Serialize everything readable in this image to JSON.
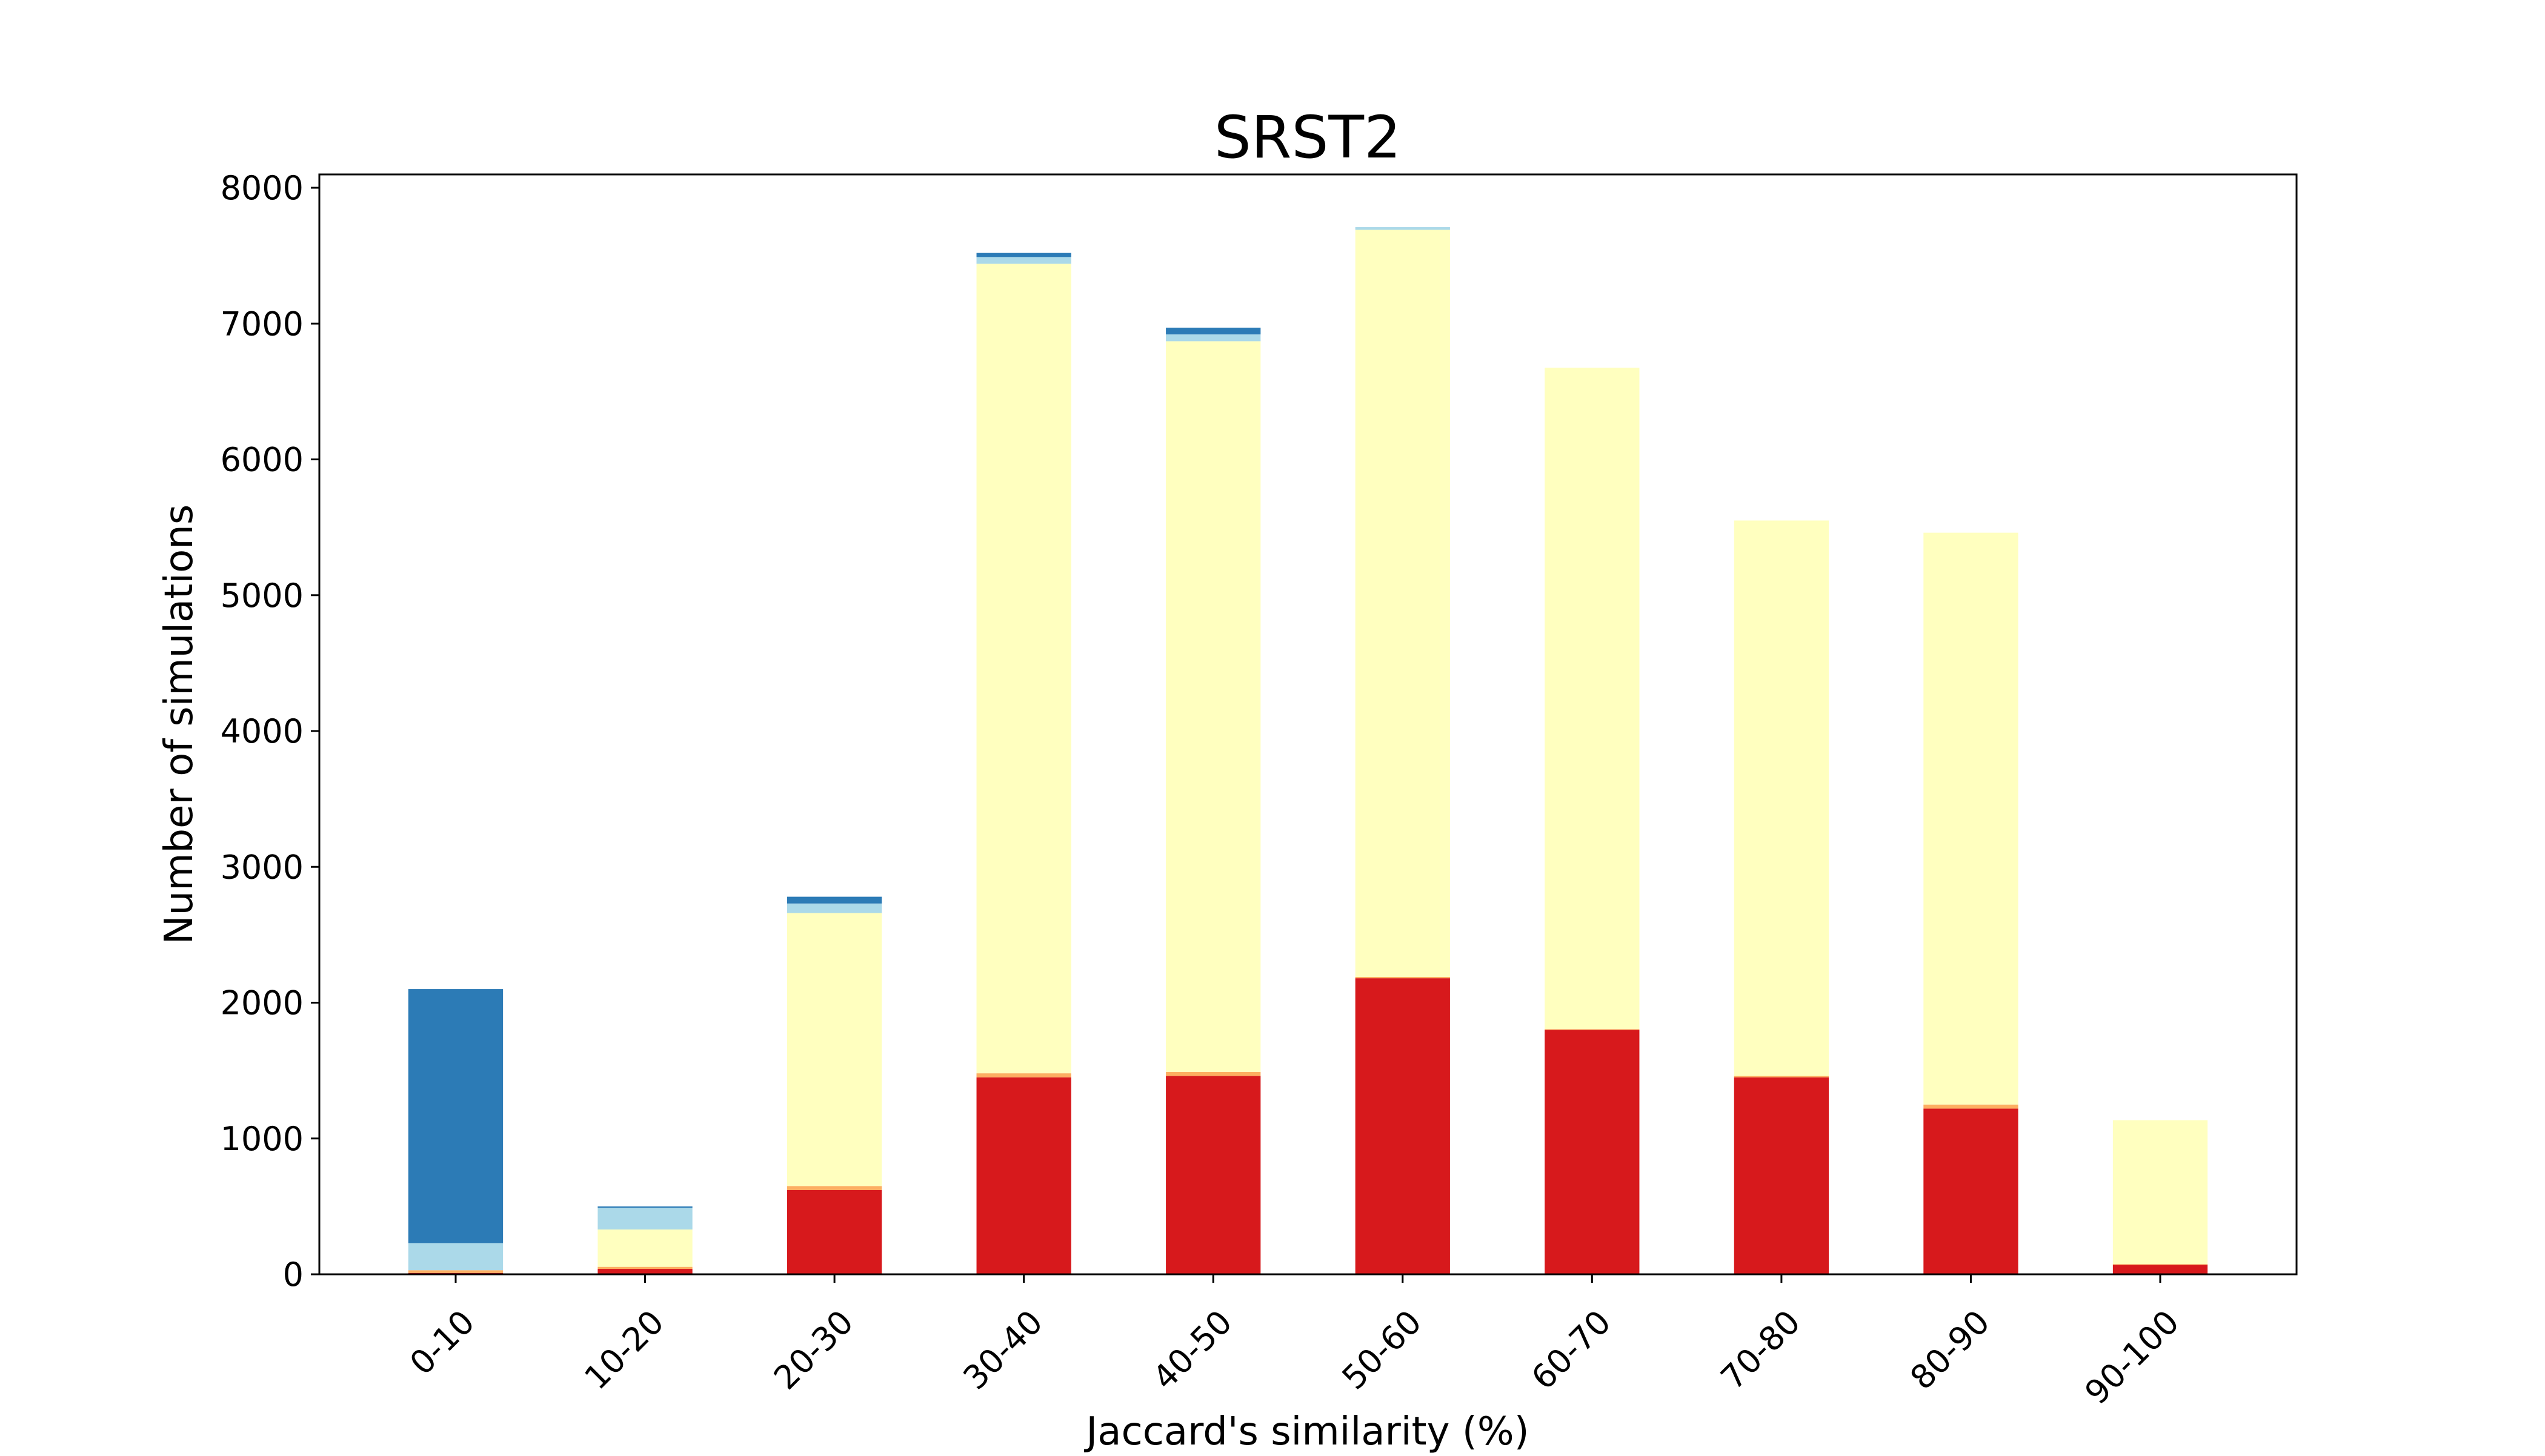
{
  "chart_data": {
    "type": "bar",
    "stacked": true,
    "title": "SRST2",
    "xlabel": "Jaccard's similarity (%)",
    "ylabel": "Number of simulations",
    "ylim": [
      0,
      8000
    ],
    "yticks": [
      0,
      1000,
      2000,
      3000,
      4000,
      5000,
      6000,
      7000,
      8000
    ],
    "grid": false,
    "legend": "none",
    "categories": [
      "0-10",
      "10-20",
      "20-30",
      "30-40",
      "40-50",
      "50-60",
      "60-70",
      "70-80",
      "80-90",
      "90-100"
    ],
    "series": [
      {
        "color": "#d7191c",
        "values": [
          10,
          40,
          620,
          1450,
          1460,
          2180,
          1800,
          1450,
          1220,
          70
        ]
      },
      {
        "color": "#fdae61",
        "values": [
          20,
          15,
          30,
          30,
          30,
          10,
          5,
          10,
          30,
          5
        ]
      },
      {
        "color": "#ffffbf",
        "values": [
          0,
          275,
          2010,
          5960,
          5380,
          5500,
          4870,
          4090,
          4210,
          1060
        ]
      },
      {
        "color": "#abd9e9",
        "values": [
          200,
          160,
          70,
          50,
          50,
          20,
          0,
          0,
          0,
          0
        ]
      },
      {
        "color": "#2c7bb6",
        "values": [
          1870,
          10,
          50,
          30,
          50,
          0,
          0,
          0,
          0,
          0
        ]
      }
    ]
  }
}
